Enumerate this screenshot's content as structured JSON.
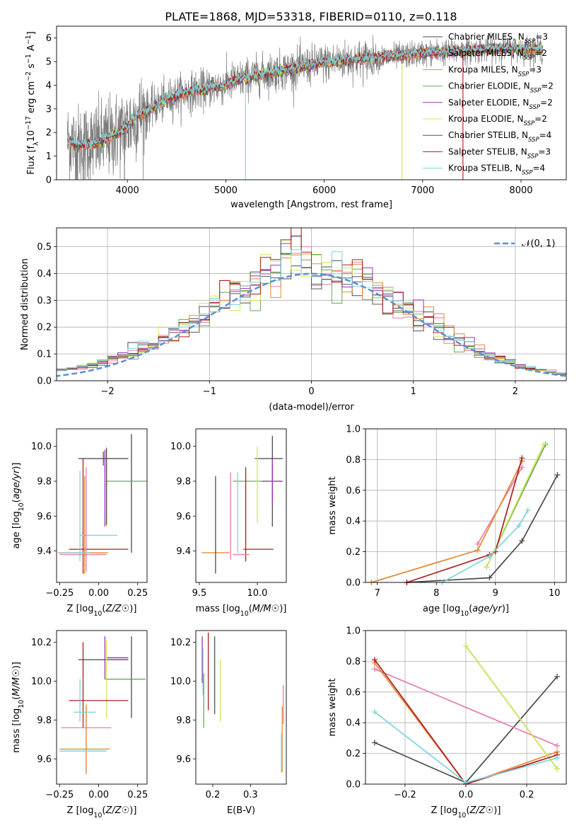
{
  "figure_title": "PLATE=1868, MJD=53318, FIBERID=0110, z=0.118",
  "colors": {
    "Chabrier MILES": "#4a4a4a",
    "Salpeter MILES": "#e87ab0",
    "Kroupa MILES": "#e58a33",
    "Chabrier ELODIE": "#6aa84f",
    "Salpeter ELODIE": "#9b30b8",
    "Kroupa ELODIE": "#cfe85a",
    "Chabrier STELIB": "#555555",
    "Salpeter STELIB": "#b01c1c",
    "Kroupa STELIB": "#7dd3dc",
    "normal_curve": "#5b8fd6"
  },
  "chart_data": [
    {
      "id": "spectrum",
      "type": "line",
      "title": "PLATE=1868, MJD=53318, FIBERID=0110, z=0.118",
      "xlabel": "wavelength [Angstrom, rest frame]",
      "ylabel_parts": [
        "Flux [f",
        "λ",
        "10",
        "−17",
        " erg cm",
        "−2",
        " s",
        "−1",
        " A",
        "−1",
        "]"
      ],
      "xlim": [
        3280,
        8460
      ],
      "ylim": [
        0,
        6.5
      ],
      "xticks": [
        4000,
        5000,
        6000,
        7000,
        8000
      ],
      "yticks": [
        0,
        1,
        2,
        3,
        4,
        5,
        6
      ],
      "x_range_data": [
        3390,
        8220
      ],
      "model_anchor_points": {
        "x": [
          3390,
          3500,
          3700,
          3850,
          4000,
          4100,
          4300,
          4500,
          4800,
          5000,
          5200,
          5400,
          5600,
          5800,
          6000,
          6200,
          6500,
          6800,
          7000,
          7200,
          7400,
          7600,
          7800,
          8000,
          8200
        ],
        "y": [
          1.65,
          1.45,
          1.55,
          1.85,
          2.25,
          2.7,
          3.15,
          3.6,
          3.85,
          4.05,
          4.3,
          4.5,
          4.65,
          4.8,
          4.95,
          5.05,
          5.15,
          5.25,
          5.35,
          5.4,
          5.45,
          5.5,
          5.55,
          5.55,
          5.5
        ]
      },
      "legend": [
        {
          "imf": "Chabrier",
          "lib": "MILES",
          "n": "3"
        },
        {
          "imf": "Salpeter",
          "lib": "MILES",
          "n": "2"
        },
        {
          "imf": "Kroupa",
          "lib": "MILES",
          "n": "3"
        },
        {
          "imf": "Chabrier",
          "lib": "ELODIE",
          "n": "2"
        },
        {
          "imf": "Salpeter",
          "lib": "ELODIE",
          "n": "2"
        },
        {
          "imf": "Kroupa",
          "lib": "ELODIE",
          "n": "2"
        },
        {
          "imf": "Chabrier",
          "lib": "STELIB",
          "n": "4"
        },
        {
          "imf": "Salpeter",
          "lib": "STELIB",
          "n": "3"
        },
        {
          "imf": "Kroupa",
          "lib": "STELIB",
          "n": "4"
        }
      ],
      "legend_placement": "top-right"
    },
    {
      "id": "residuals",
      "type": "histogram",
      "xlabel": "(data-model)/error",
      "ylabel": "Normed distribution",
      "xlim": [
        -2.5,
        2.5
      ],
      "ylim": [
        0,
        0.57
      ],
      "xticks": [
        -2,
        -1,
        0,
        1,
        2
      ],
      "xtick_labels": [
        "−2",
        "−1",
        "0",
        "1",
        "2"
      ],
      "yticks": [
        0.0,
        0.1,
        0.2,
        0.3,
        0.4,
        0.5
      ],
      "ytick_labels": [
        "0.0",
        "0.1",
        "0.2",
        "0.3",
        "0.4",
        "0.5"
      ],
      "grid": true,
      "bin_width": 0.1,
      "legend_entry": "𝒩(0, 1)",
      "legend_placement": "top-right"
    },
    {
      "id": "age_vs_Z",
      "type": "scatter",
      "xlabel": "Z [log10(Z/Z☉)]",
      "ylabel": "age  [log10(age/yr)]",
      "xlim": [
        -0.27,
        0.31
      ],
      "ylim": [
        9.22,
        10.1
      ],
      "xticks": [
        -0.25,
        0.0,
        0.25
      ],
      "xtick_labels": [
        "−0.25",
        "0.00",
        "0.25"
      ],
      "yticks": [
        9.4,
        9.6,
        9.8,
        10.0
      ],
      "ytick_labels": [
        "9.4",
        "9.6",
        "9.8",
        "10.0"
      ],
      "points": [
        {
          "model": "Chabrier STELIB",
          "x": 0.03,
          "xerr": 0.16,
          "y": 9.93,
          "yerr": 0.04
        },
        {
          "model": "Chabrier MILES",
          "x": 0.21,
          "xerr": 0.0,
          "y": 9.73,
          "yerr": 0.34
        },
        {
          "model": "Chabrier ELODIE",
          "x": 0.18,
          "xerr": 0.13,
          "y": 9.8,
          "yerr": 0.0
        },
        {
          "model": "Salpeter STELIB",
          "x": -0.1,
          "xerr": 0.0,
          "y": 9.6,
          "yerr": 0.33
        },
        {
          "model": "Salpeter STELIB",
          "x": 0.0,
          "xerr": 0.19,
          "y": 9.41,
          "yerr": 0.0
        },
        {
          "model": "Kroupa ELODIE",
          "x": 0.05,
          "xerr": 0.0,
          "y": 9.77,
          "yerr": 0.23
        },
        {
          "model": "Salpeter ELODIE",
          "x": 0.04,
          "xerr": 0.0,
          "y": 9.76,
          "yerr": 0.22
        },
        {
          "model": "Kroupa STELIB",
          "x": 0.0,
          "xerr": 0.12,
          "y": 9.49,
          "yerr": 0.0
        },
        {
          "model": "Kroupa STELIB",
          "x": -0.12,
          "xerr": 0.0,
          "y": 9.6,
          "yerr": 0.26
        },
        {
          "model": "Salpeter MILES",
          "x": -0.08,
          "xerr": 0.0,
          "y": 9.58,
          "yerr": 0.3
        },
        {
          "model": "Salpeter MILES",
          "x": -0.1,
          "xerr": 0.15,
          "y": 9.38,
          "yerr": 0.0
        },
        {
          "model": "Kroupa MILES",
          "x": -0.09,
          "xerr": 0.0,
          "y": 9.55,
          "yerr": 0.28
        },
        {
          "model": "Kroupa MILES",
          "x": -0.1,
          "xerr": 0.16,
          "y": 9.39,
          "yerr": 0.0
        },
        {
          "model": "Kroupa STELIB",
          "x": -0.16,
          "xerr": 0.1,
          "y": 9.39,
          "yerr": 0.0
        },
        {
          "model": "Chabrier MILES",
          "x": 0.05,
          "xerr": 0.0,
          "y": 9.77,
          "yerr": 0.22
        }
      ]
    },
    {
      "id": "age_vs_mass",
      "type": "scatter",
      "xlabel": "mass [log10(M/M☉)]",
      "ylabel": "",
      "xlim": [
        9.47,
        10.25
      ],
      "ylim": [
        9.22,
        10.1
      ],
      "xticks": [
        9.5,
        10.0
      ],
      "xtick_labels": [
        "9.5",
        "10.0"
      ],
      "yticks": [
        9.4,
        9.6,
        9.8,
        10.0
      ],
      "ytick_labels": [
        "9.4",
        "9.6",
        "9.8",
        "10.0"
      ],
      "points": [
        {
          "model": "Chabrier STELIB",
          "x": 10.1,
          "xerr": 0.12,
          "y": 9.93,
          "yerr": 0.0
        },
        {
          "model": "Chabrier MILES",
          "x": 10.13,
          "xerr": 0.0,
          "y": 9.8,
          "yerr": 0.26
        },
        {
          "model": "Chabrier ELODIE",
          "x": 10.0,
          "xerr": 0.21,
          "y": 9.8,
          "yerr": 0.0
        },
        {
          "model": "Salpeter ELODIE",
          "x": 10.13,
          "xerr": 0.09,
          "y": 9.8,
          "yerr": 0.13
        },
        {
          "model": "Kroupa ELODIE",
          "x": 10.0,
          "xerr": 0.0,
          "y": 9.78,
          "yerr": 0.22
        },
        {
          "model": "Salpeter STELIB",
          "x": 9.9,
          "xerr": 0.0,
          "y": 9.61,
          "yerr": 0.27
        },
        {
          "model": "Salpeter STELIB",
          "x": 10.01,
          "xerr": 0.13,
          "y": 9.41,
          "yerr": 0.0
        },
        {
          "model": "Kroupa STELIB",
          "x": 9.83,
          "xerr": 0.0,
          "y": 9.62,
          "yerr": 0.23
        },
        {
          "model": "Salpeter MILES",
          "x": 9.77,
          "xerr": 0.0,
          "y": 9.6,
          "yerr": 0.25
        },
        {
          "model": "Kroupa MILES",
          "x": 9.64,
          "xerr": 0.0,
          "y": 9.55,
          "yerr": 0.27
        },
        {
          "model": "Kroupa MILES",
          "x": 9.64,
          "xerr": 0.12,
          "y": 9.39,
          "yerr": 0.0
        },
        {
          "model": "Chabrier STELIB",
          "x": 9.64,
          "xerr": 0.0,
          "y": 9.55,
          "yerr": 0.28
        },
        {
          "model": "Salpeter MILES",
          "x": 9.86,
          "xerr": 0.07,
          "y": 9.38,
          "yerr": 0.0
        }
      ]
    },
    {
      "id": "weight_vs_age",
      "type": "line",
      "xlabel": "age  [log10(age/yr)]",
      "ylabel": "mass weight",
      "xlim": [
        6.8,
        10.2
      ],
      "ylim": [
        0.0,
        1.0
      ],
      "xticks": [
        7,
        8,
        9,
        10
      ],
      "xtick_labels": [
        "7",
        "8",
        "9",
        "10"
      ],
      "yticks": [
        0.0,
        0.2,
        0.4,
        0.6,
        0.8,
        1.0
      ],
      "ytick_labels": [
        "0.0",
        "0.2",
        "0.4",
        "0.6",
        "0.8",
        "1.0"
      ],
      "grid": true,
      "series": [
        {
          "model": "Chabrier MILES",
          "x": [
            7.5,
            8.9,
            9.45,
            10.05
          ],
          "y": [
            0.0,
            0.03,
            0.27,
            0.7
          ]
        },
        {
          "model": "Salpeter MILES",
          "x": [
            8.7,
            9.45
          ],
          "y": [
            0.25,
            0.75
          ]
        },
        {
          "model": "Kroupa MILES",
          "x": [
            6.9,
            8.7,
            9.45
          ],
          "y": [
            0.0,
            0.21,
            0.79
          ]
        },
        {
          "model": "Chabrier ELODIE",
          "x": [
            8.85,
            9.85
          ],
          "y": [
            0.1,
            0.9
          ]
        },
        {
          "model": "Kroupa ELODIE",
          "x": [
            8.85,
            9.82
          ],
          "y": [
            0.1,
            0.9
          ]
        },
        {
          "model": "Salpeter STELIB",
          "x": [
            7.5,
            8.9,
            9.0,
            9.45
          ],
          "y": [
            0.0,
            0.18,
            0.2,
            0.81
          ]
        },
        {
          "model": "Kroupa STELIB",
          "x": [
            8.1,
            8.9,
            9.4,
            9.55
          ],
          "y": [
            0.0,
            0.17,
            0.37,
            0.47
          ]
        }
      ]
    },
    {
      "id": "mass_vs_Z",
      "type": "scatter",
      "xlabel": "Z [log10(Z/Z☉)]",
      "ylabel": "mass [log10(M/M☉)]",
      "xlim": [
        -0.27,
        0.31
      ],
      "ylim": [
        9.47,
        10.26
      ],
      "xticks": [
        -0.25,
        0.0,
        0.25
      ],
      "xtick_labels": [
        "−0.25",
        "0.00",
        "0.25"
      ],
      "yticks": [
        9.6,
        9.8,
        10.0,
        10.2
      ],
      "ytick_labels": [
        "9.6",
        "9.8",
        "10.0",
        "10.2"
      ],
      "points": [
        {
          "model": "Chabrier STELIB",
          "x": 0.03,
          "xerr": 0.16,
          "y": 10.11,
          "yerr": 0.0
        },
        {
          "model": "Chabrier MILES",
          "x": 0.21,
          "xerr": 0.0,
          "y": 10.02,
          "yerr": 0.21
        },
        {
          "model": "Salpeter ELODIE",
          "x": 0.12,
          "xerr": 0.07,
          "y": 10.12,
          "yerr": 0.0
        },
        {
          "model": "Salpeter ELODIE",
          "x": 0.04,
          "xerr": 0.0,
          "y": 10.12,
          "yerr": 0.11
        },
        {
          "model": "Chabrier ELODIE",
          "x": 0.17,
          "xerr": 0.13,
          "y": 10.01,
          "yerr": 0.0
        },
        {
          "model": "Kroupa ELODIE",
          "x": 0.05,
          "xerr": 0.0,
          "y": 10.01,
          "yerr": 0.2
        },
        {
          "model": "Salpeter STELIB",
          "x": -0.1,
          "xerr": 0.0,
          "y": 9.98,
          "yerr": 0.22
        },
        {
          "model": "Salpeter STELIB",
          "x": 0.0,
          "xerr": 0.19,
          "y": 9.9,
          "yerr": 0.0
        },
        {
          "model": "Kroupa STELIB",
          "x": -0.12,
          "xerr": 0.0,
          "y": 9.9,
          "yerr": 0.11
        },
        {
          "model": "Kroupa STELIB",
          "x": -0.09,
          "xerr": 0.07,
          "y": 9.84,
          "yerr": 0.0
        },
        {
          "model": "Salpeter MILES",
          "x": -0.08,
          "xerr": 0.16,
          "y": 9.76,
          "yerr": 0.0
        },
        {
          "model": "Salpeter MILES",
          "x": -0.08,
          "xerr": 0.0,
          "y": 9.7,
          "yerr": 0.17
        },
        {
          "model": "Kroupa MILES",
          "x": -0.09,
          "xerr": 0.16,
          "y": 9.65,
          "yerr": 0.0
        },
        {
          "model": "Kroupa MILES",
          "x": -0.08,
          "xerr": 0.0,
          "y": 9.7,
          "yerr": 0.18
        },
        {
          "model": "Kroupa STELIB",
          "x": -0.1,
          "xerr": 0.15,
          "y": 9.64,
          "yerr": 0.0
        }
      ]
    },
    {
      "id": "mass_vs_EBV",
      "type": "scatter",
      "xlabel": "E(B-V)",
      "ylabel": "",
      "xlim": [
        0.155,
        0.395
      ],
      "ylim": [
        9.47,
        10.26
      ],
      "xticks": [
        0.2,
        0.3
      ],
      "xtick_labels": [
        "0.2",
        "0.3"
      ],
      "yticks": [
        9.6,
        9.8,
        10.0,
        10.2
      ],
      "ytick_labels": [
        "9.6",
        "9.8",
        "10.0",
        "10.2"
      ],
      "points": [
        {
          "model": "Salpeter ELODIE",
          "x": 0.172,
          "xerr": 0.0,
          "y": 10.11,
          "yerr": 0.12
        },
        {
          "model": "Kroupa STELIB",
          "x": 0.174,
          "xerr": 0.0,
          "y": 10.05,
          "yerr": 0.12
        },
        {
          "model": "Chabrier ELODIE",
          "x": 0.176,
          "xerr": 0.0,
          "y": 9.9,
          "yerr": 0.14
        },
        {
          "model": "Salpeter STELIB",
          "x": 0.188,
          "xerr": 0.0,
          "y": 10.05,
          "yerr": 0.2
        },
        {
          "model": "Chabrier STELIB",
          "x": 0.205,
          "xerr": 0.0,
          "y": 10.03,
          "yerr": 0.2
        },
        {
          "model": "Kroupa ELODIE",
          "x": 0.22,
          "xerr": 0.0,
          "y": 9.95,
          "yerr": 0.16
        },
        {
          "model": "Salpeter MILES",
          "x": 0.387,
          "xerr": 0.0,
          "y": 9.88,
          "yerr": 0.1
        },
        {
          "model": "Kroupa MILES",
          "x": 0.384,
          "xerr": 0.0,
          "y": 9.7,
          "yerr": 0.17
        },
        {
          "model": "Kroupa STELIB",
          "x": 0.382,
          "xerr": 0.0,
          "y": 9.63,
          "yerr": 0.1
        }
      ]
    },
    {
      "id": "weight_vs_Z",
      "type": "line",
      "xlabel": "Z [log10(Z/Z☉)]",
      "ylabel": "mass weight",
      "xlim": [
        -0.33,
        0.33
      ],
      "ylim": [
        0.0,
        1.0
      ],
      "xticks": [
        -0.2,
        0.0,
        0.2
      ],
      "xtick_labels": [
        "−0.2",
        "0.0",
        "0.2"
      ],
      "yticks": [
        0.0,
        0.2,
        0.4,
        0.6,
        0.8,
        1.0
      ],
      "ytick_labels": [
        "0.0",
        "0.2",
        "0.4",
        "0.6",
        "0.8",
        "1.0"
      ],
      "grid": true,
      "series": [
        {
          "model": "Chabrier MILES",
          "x": [
            -0.3,
            0.0,
            0.3
          ],
          "y": [
            0.27,
            0.01,
            0.7
          ]
        },
        {
          "model": "Salpeter MILES",
          "x": [
            -0.3,
            0.3
          ],
          "y": [
            0.75,
            0.25
          ]
        },
        {
          "model": "Kroupa MILES",
          "x": [
            -0.3,
            0.0,
            0.3
          ],
          "y": [
            0.79,
            0.0,
            0.21
          ]
        },
        {
          "model": "Chabrier ELODIE",
          "x": [
            0.0,
            0.3
          ],
          "y": [
            0.9,
            0.1
          ]
        },
        {
          "model": "Kroupa ELODIE",
          "x": [
            0.0,
            0.3
          ],
          "y": [
            0.9,
            0.1
          ]
        },
        {
          "model": "Salpeter STELIB",
          "x": [
            -0.3,
            0.0,
            0.3
          ],
          "y": [
            0.81,
            0.0,
            0.19
          ]
        },
        {
          "model": "Kroupa STELIB",
          "x": [
            -0.3,
            0.0,
            0.3
          ],
          "y": [
            0.47,
            0.01,
            0.17
          ]
        }
      ]
    }
  ]
}
